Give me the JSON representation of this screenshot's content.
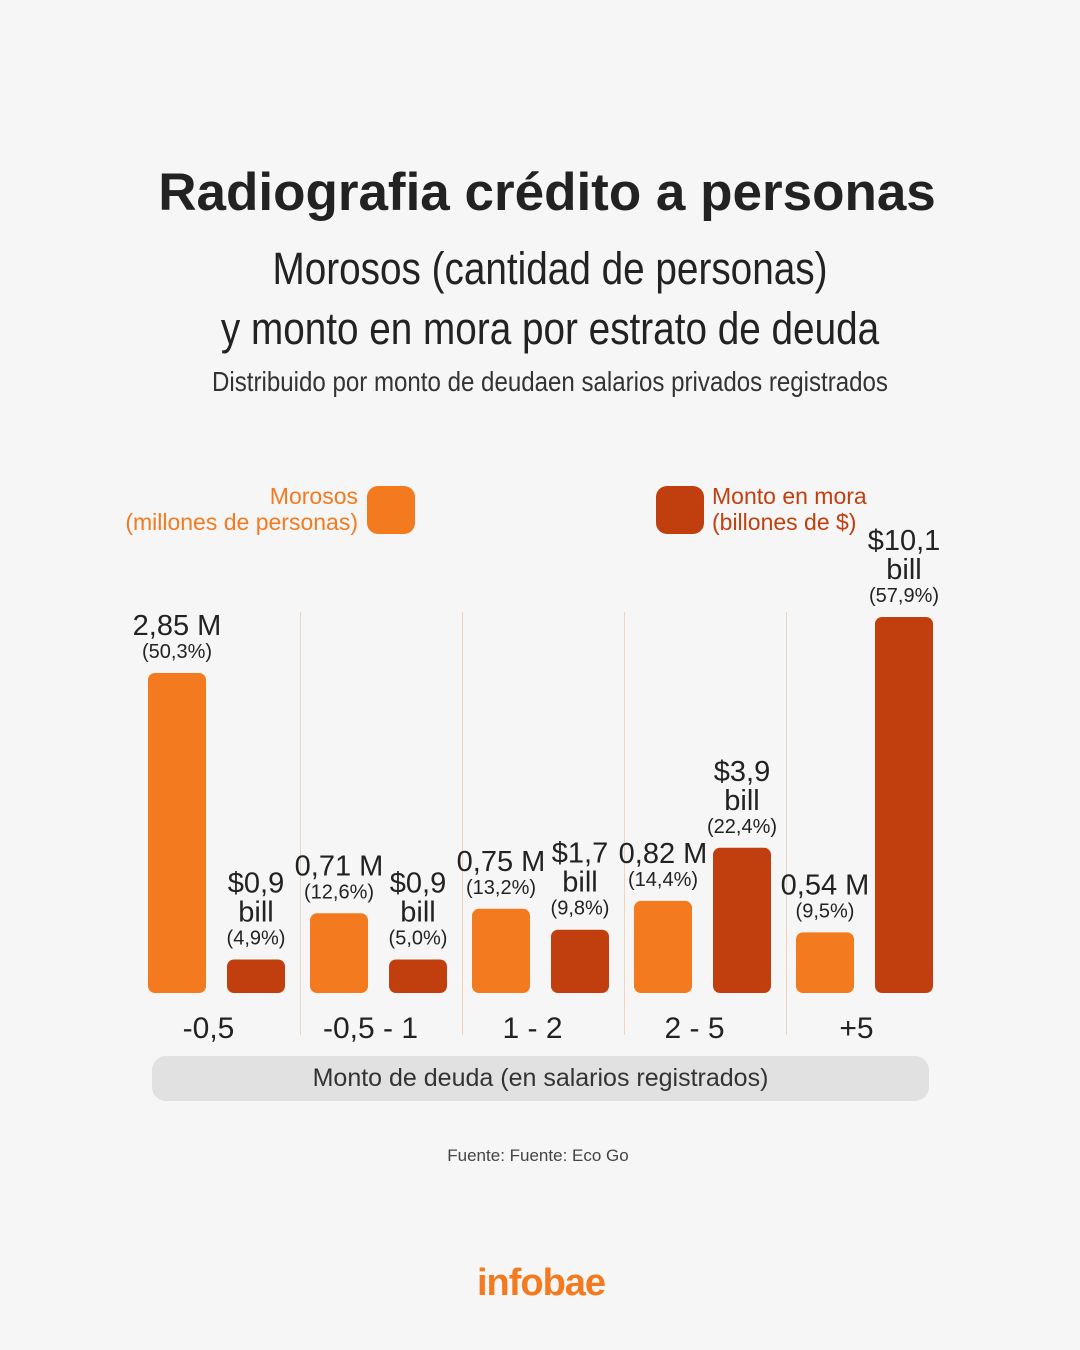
{
  "title": "Radiografia crédito a personas",
  "subtitle_line1": "Morosos (cantidad de personas)",
  "subtitle_line2": "y monto en mora por estrato de deuda",
  "note": "Distribuido por monto de deudaen salarios privados registrados",
  "legend": {
    "morosos_line1": "Morosos",
    "morosos_line2": "(millones de personas)",
    "monto_line1": "Monto en mora",
    "monto_line2": "(billones de $)"
  },
  "colors": {
    "morosos": "#f47a1f",
    "monto": "#c13f0e",
    "background": "#f6f6f6"
  },
  "axis_title": "Monto de deuda (en salarios registrados)",
  "source": "Fuente:  Fuente: Eco Go",
  "logo": "infobae",
  "chart_data": {
    "type": "bar",
    "categories": [
      "-0,5",
      "-0,5 - 1",
      "1 - 2",
      "2 - 5",
      "+5"
    ],
    "series": [
      {
        "name": "Morosos (millones de personas)",
        "values": [
          2.85,
          0.71,
          0.75,
          0.82,
          0.54
        ],
        "value_labels": [
          [
            "2,85 M"
          ],
          [
            "0,71 M"
          ],
          [
            "0,75 M"
          ],
          [
            "0,82 M"
          ],
          [
            "0,54 M"
          ]
        ],
        "share_labels": [
          "(50,3%)",
          "(12,6%)",
          "(13,2%)",
          "(14,4%)",
          "(9,5%)"
        ]
      },
      {
        "name": "Monto en mora (billones de $)",
        "values": [
          0.9,
          0.9,
          1.7,
          3.9,
          10.1
        ],
        "value_labels": [
          [
            "$0,9",
            "bill"
          ],
          [
            "$0,9",
            "bill"
          ],
          [
            "$1,7",
            "bill"
          ],
          [
            "$3,9",
            "bill"
          ],
          [
            "$10,1",
            "bill"
          ]
        ],
        "share_labels": [
          "(4,9%)",
          "(5,0%)",
          "(9,8%)",
          "(22,4%)",
          "(57,9%)"
        ]
      }
    ],
    "grid": false,
    "legend_position": "top"
  }
}
